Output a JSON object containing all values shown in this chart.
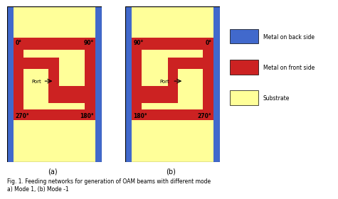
{
  "blue_color": "#4169CC",
  "red_color": "#CC2222",
  "yellow_color": "#FFFF99",
  "black_color": "#000000",
  "white_color": "#FFFFFF",
  "fig_width": 4.74,
  "fig_height": 2.67,
  "caption": "Fig. 1. Feeding networks for generation of OAM beams with different mode",
  "caption2": "a) Mode 1, (b) Mode -1",
  "label_a": "(a)",
  "label_b": "(b)",
  "legend_labels": [
    "Metal on back side",
    "Metal on front side",
    "Substrate"
  ]
}
